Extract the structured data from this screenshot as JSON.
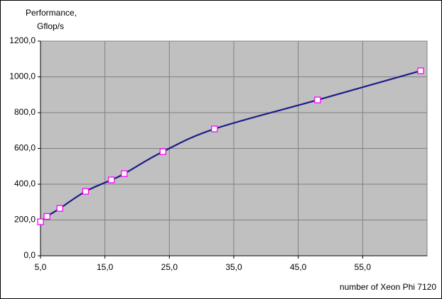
{
  "chart_data": {
    "type": "line",
    "ylabel": [
      "Performance,",
      "Gflop/s"
    ],
    "xlabel": "number  of Xeon  Phi 7120",
    "x": [
      5,
      6,
      8,
      12,
      16,
      18,
      24,
      32,
      48,
      64
    ],
    "series": [
      {
        "name": "Performance",
        "color": "#1c1c8a",
        "marker_color": "#ff00ff",
        "values": [
          190,
          220,
          265,
          360,
          424,
          459,
          582,
          709,
          871,
          1034
        ]
      }
    ],
    "xlim": [
      5,
      65
    ],
    "xticks": [
      {
        "value": 5,
        "label": "5,0"
      },
      {
        "value": 15,
        "label": "15,0"
      },
      {
        "value": 25,
        "label": "25,0"
      },
      {
        "value": 35,
        "label": "35,0"
      },
      {
        "value": 45,
        "label": "45,0"
      },
      {
        "value": 55,
        "label": "55,0"
      }
    ],
    "ylim": [
      0,
      1200
    ],
    "yticks": [
      {
        "value": 0,
        "label": "0,0"
      },
      {
        "value": 200,
        "label": "200,0"
      },
      {
        "value": 400,
        "label": "400,0"
      },
      {
        "value": 600,
        "label": "600,0"
      },
      {
        "value": 800,
        "label": "800,0"
      },
      {
        "value": 1000,
        "label": "1000,0"
      },
      {
        "value": 1200,
        "label": "1200,0"
      }
    ],
    "grid": true
  }
}
